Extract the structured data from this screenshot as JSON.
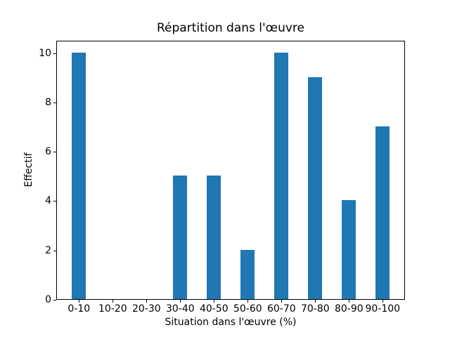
{
  "chart_data": {
    "type": "bar",
    "title": "Répartition dans l'œuvre",
    "xlabel": "Situation dans l'œuvre (%)",
    "ylabel": "Effectif",
    "categories": [
      "0-10",
      "10-20",
      "20-30",
      "30-40",
      "40-50",
      "50-60",
      "60-70",
      "70-80",
      "80-90",
      "90-100"
    ],
    "values": [
      10,
      0,
      0,
      5,
      5,
      2,
      10,
      9,
      4,
      7
    ],
    "ylim": [
      0,
      10.5
    ],
    "yticks": [
      0,
      2,
      4,
      6,
      8,
      10
    ],
    "bar_color": "#1f77b4",
    "axis_color": "#000000",
    "background_color": "#ffffff",
    "grid": false,
    "legend_position": "none"
  }
}
